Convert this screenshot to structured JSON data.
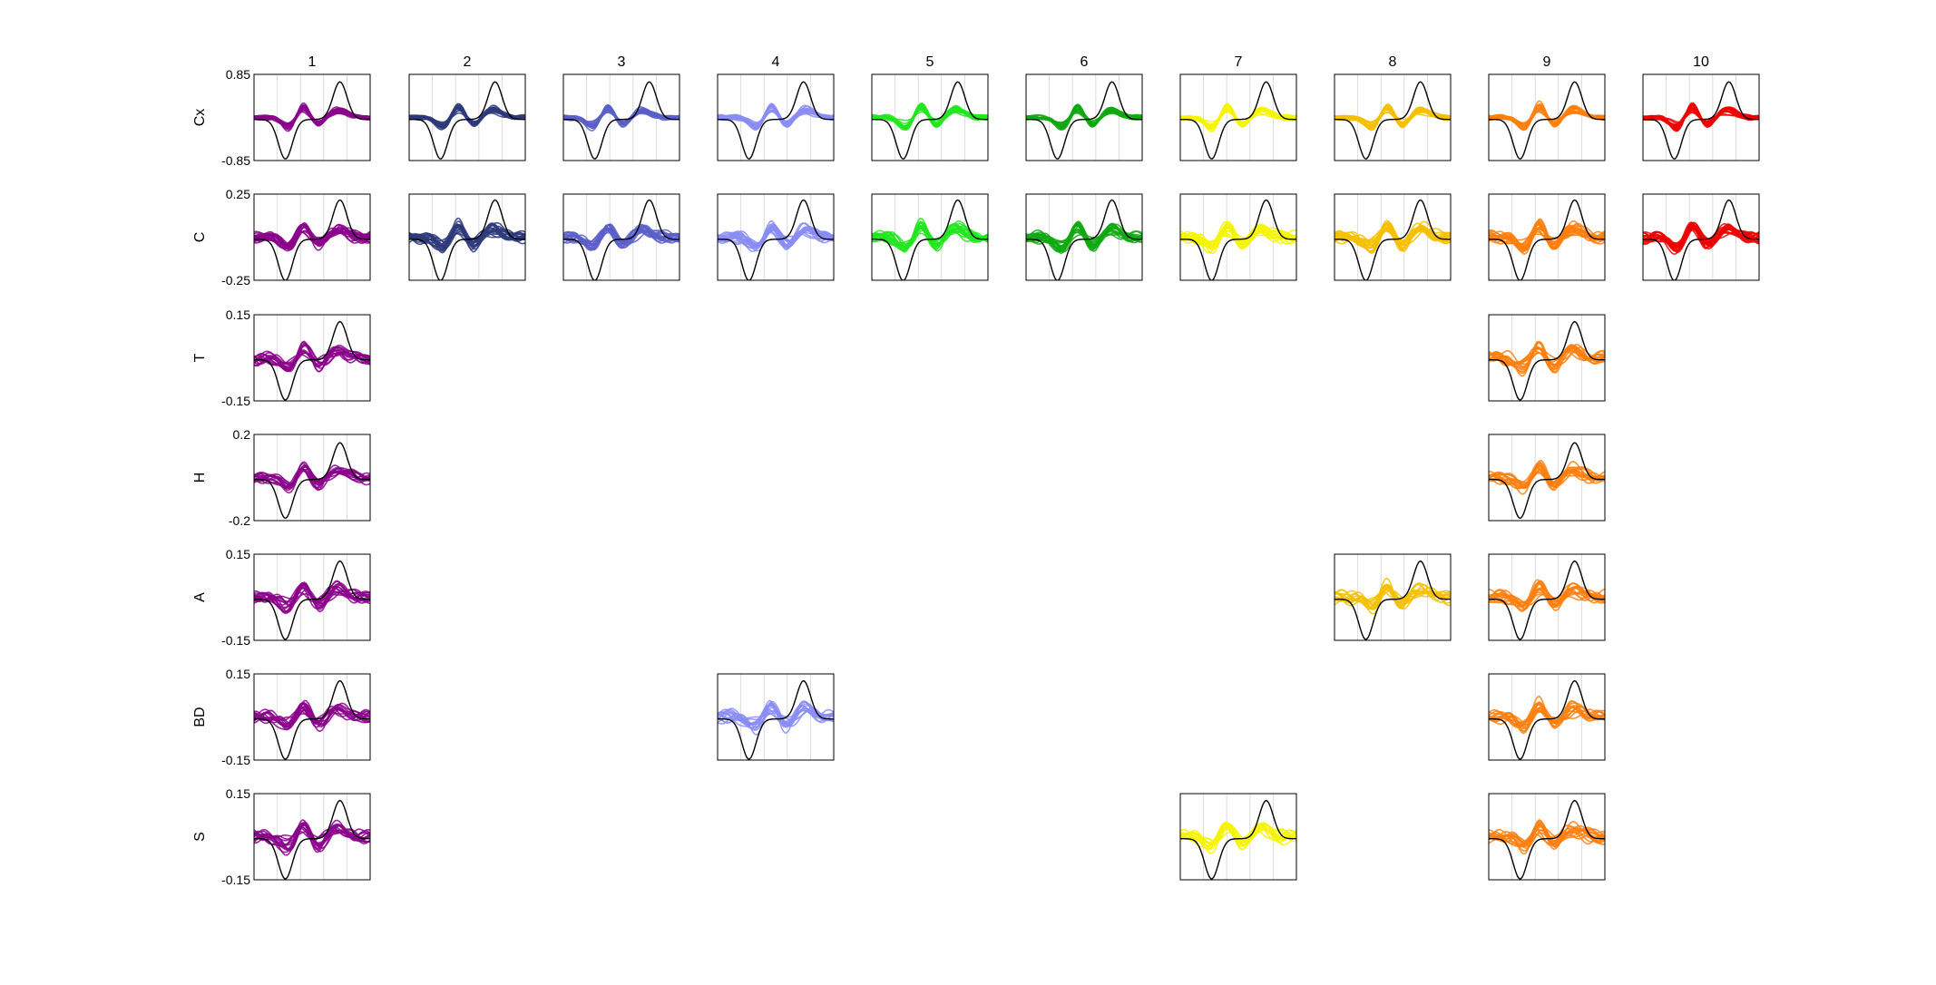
{
  "chart_data": {
    "type": "line",
    "description_grid": "small multiples",
    "columns": [
      "1",
      "2",
      "3",
      "4",
      "5",
      "6",
      "7",
      "8",
      "9",
      "10"
    ],
    "rows": [
      {
        "label": "Cx",
        "ylim": [
          -0.85,
          0.85
        ],
        "ytick_labels": [
          "0.85",
          "-0.85"
        ],
        "ref_amp": 0.78,
        "spread": 0.07,
        "cols": [
          1,
          2,
          3,
          4,
          5,
          6,
          7,
          8,
          9,
          10
        ]
      },
      {
        "label": "C",
        "ylim": [
          -0.25,
          0.25
        ],
        "ytick_labels": [
          "0.25",
          "-0.25"
        ],
        "ref_amp": 0.24,
        "spread": 0.05,
        "cols": [
          1,
          2,
          3,
          4,
          5,
          6,
          7,
          8,
          9,
          10
        ]
      },
      {
        "label": "T",
        "ylim": [
          -0.15,
          0.15
        ],
        "ytick_labels": [
          "0.15",
          "-0.15"
        ],
        "ref_amp": 0.14,
        "spread": 0.035,
        "cols": [
          1,
          9
        ]
      },
      {
        "label": "H",
        "ylim": [
          -0.2,
          0.2
        ],
        "ytick_labels": [
          "0.2",
          "-0.2"
        ],
        "ref_amp": 0.18,
        "spread": 0.04,
        "cols": [
          1,
          9
        ]
      },
      {
        "label": "A",
        "ylim": [
          -0.15,
          0.15
        ],
        "ytick_labels": [
          "0.15",
          "-0.15"
        ],
        "ref_amp": 0.14,
        "spread": 0.035,
        "cols": [
          1,
          8,
          9
        ]
      },
      {
        "label": "BD",
        "ylim": [
          -0.15,
          0.15
        ],
        "ytick_labels": [
          "0.15",
          "-0.15"
        ],
        "ref_amp": 0.14,
        "spread": 0.035,
        "cols": [
          1,
          4,
          9
        ]
      },
      {
        "label": "S",
        "ylim": [
          -0.15,
          0.15
        ],
        "ytick_labels": [
          "0.15",
          "-0.15"
        ],
        "ref_amp": 0.14,
        "spread": 0.035,
        "cols": [
          1,
          7,
          9
        ]
      }
    ],
    "series_colors": [
      "#8b008b",
      "#2e3a7a",
      "#5a5fc8",
      "#8a8cf5",
      "#22e61e",
      "#11a811",
      "#f5f500",
      "#f5c000",
      "#ff7f0e",
      "#ee0000"
    ],
    "reference_color": "#000000",
    "grid": "vertical",
    "legend": "none"
  }
}
